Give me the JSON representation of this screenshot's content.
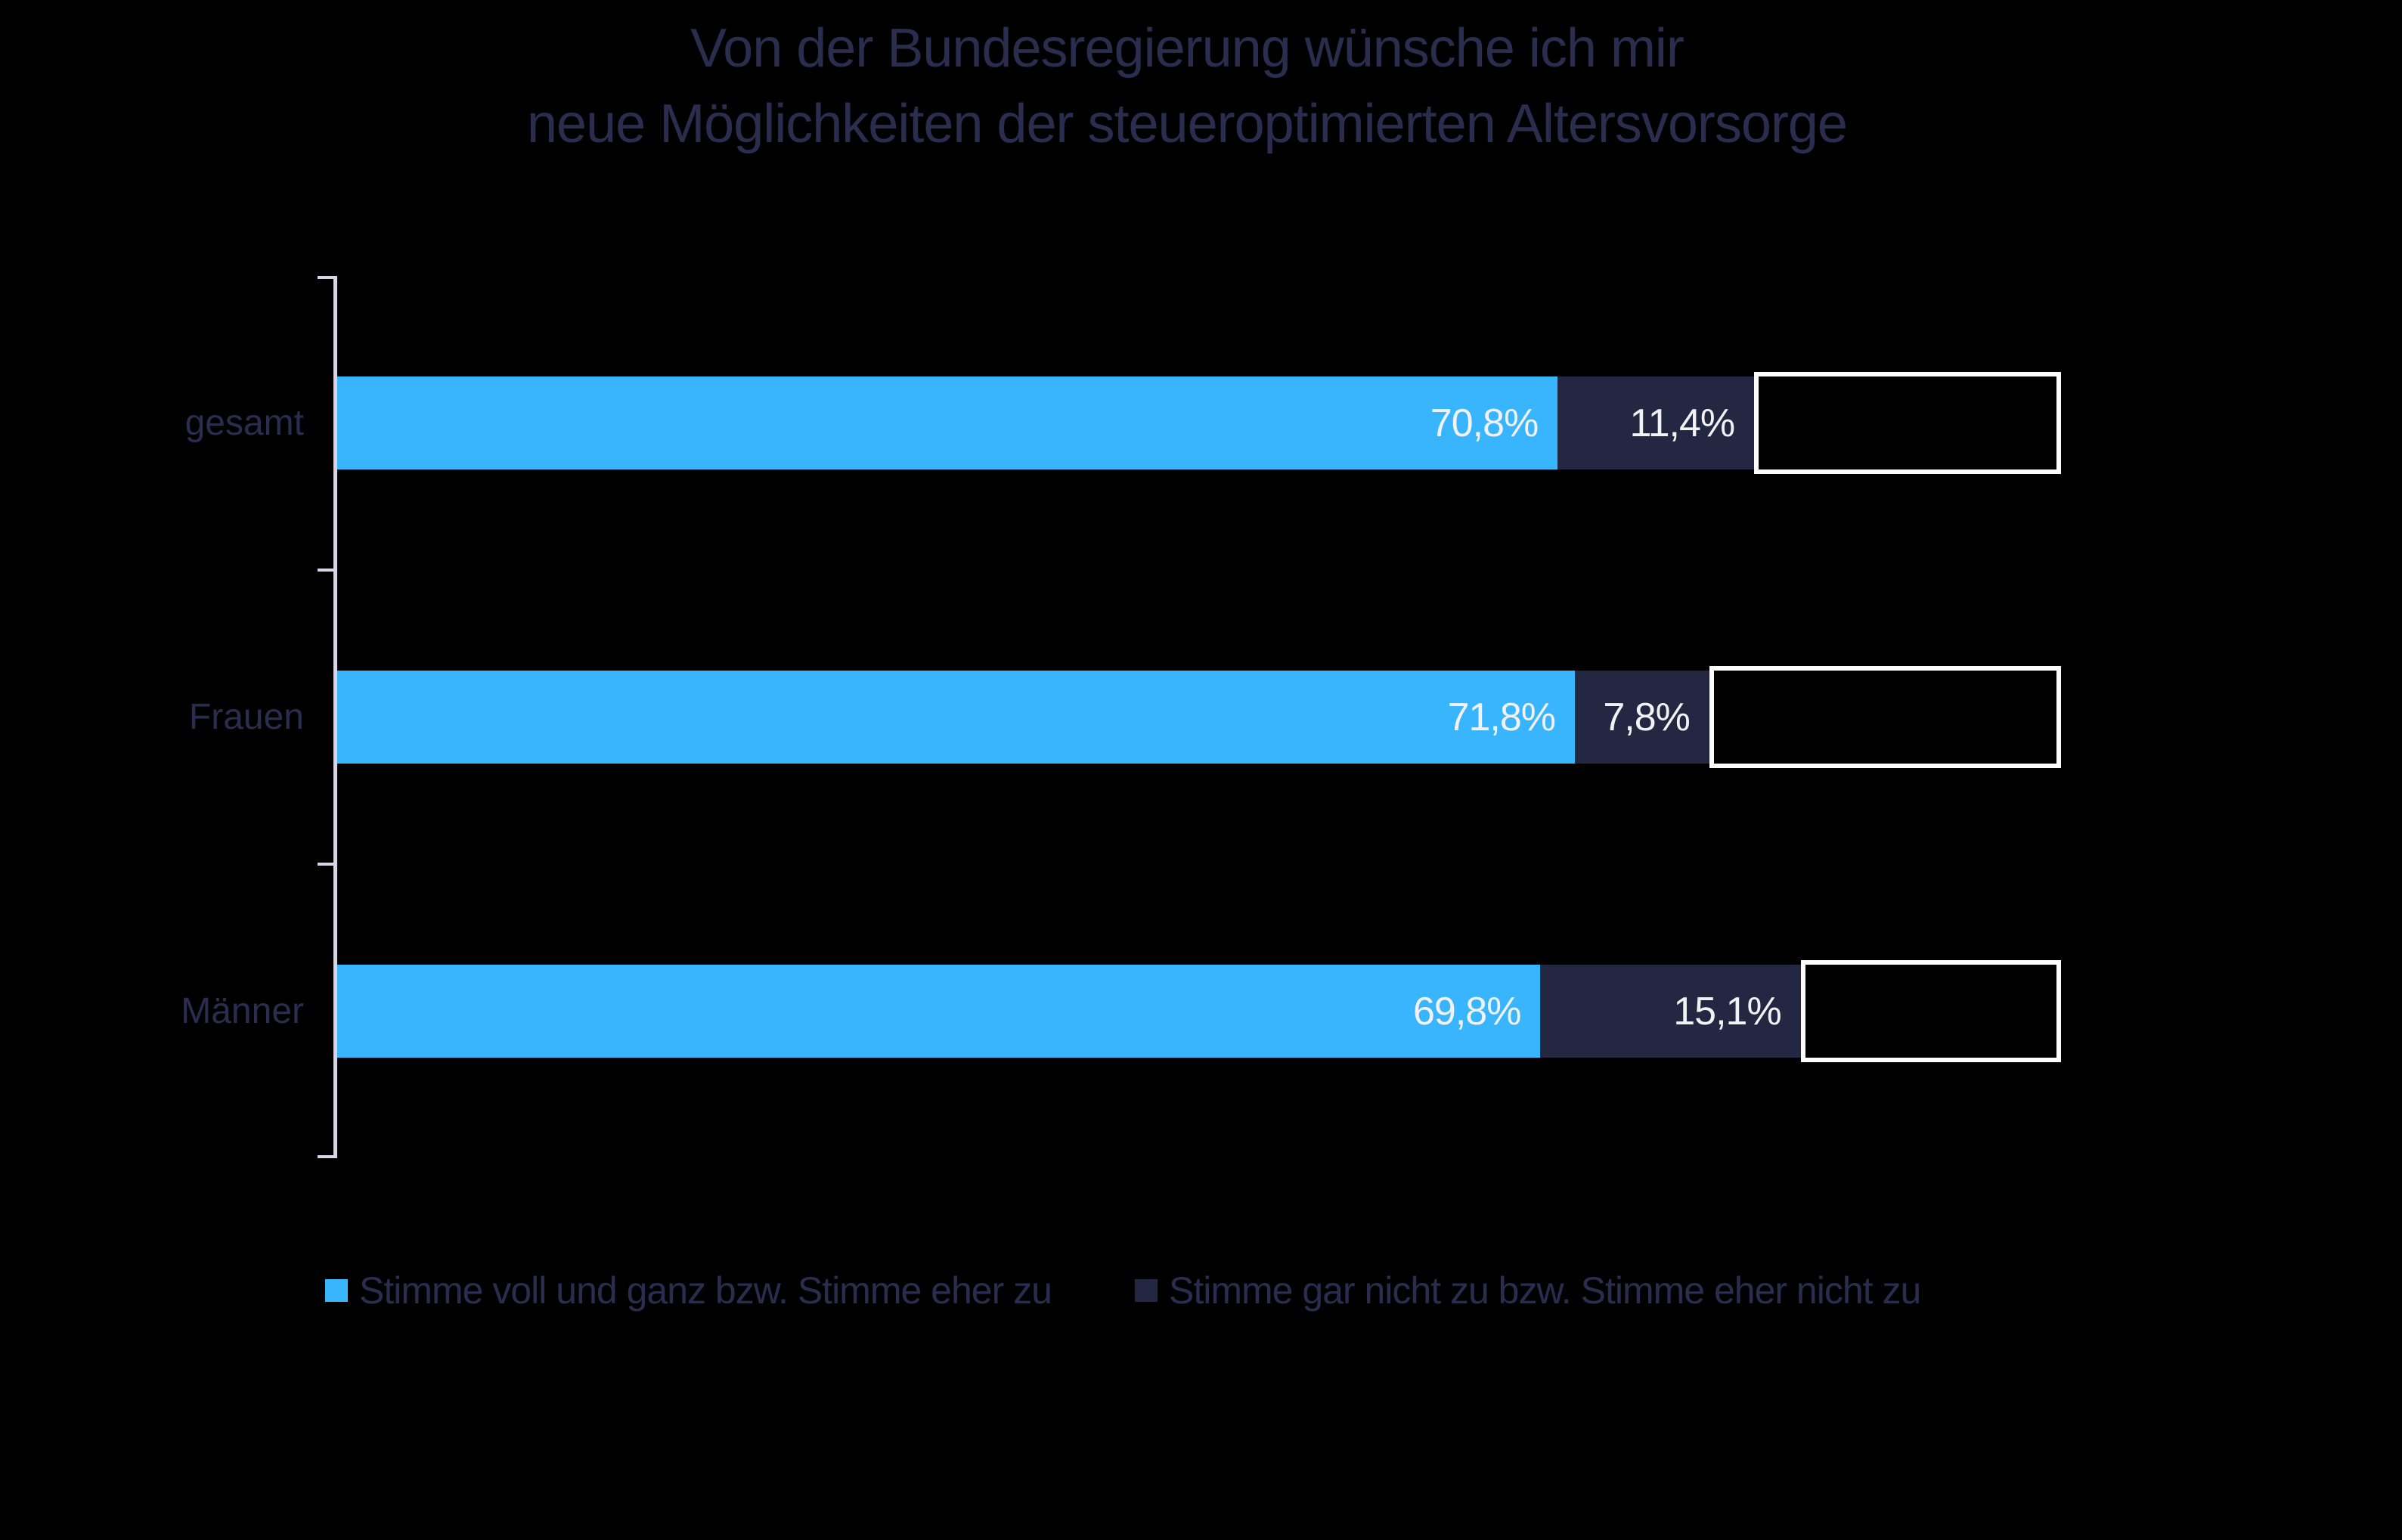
{
  "title": {
    "line1": "Von der Bundesregierung wünsche ich mir",
    "line2": "neue Möglichkeiten der steueroptimierten Altersvorsorge"
  },
  "legend": {
    "items": [
      {
        "label": "Stimme voll und ganz bzw. Stimme eher zu",
        "color_key": "agree"
      },
      {
        "label": "Stimme gar nicht zu bzw. Stimme eher nicht zu",
        "color_key": "disagree"
      }
    ]
  },
  "colors": {
    "background": "#000000",
    "agree": "#38b5fd",
    "disagree": "#232742",
    "text_dark": "#2a2d4d",
    "value_text": "#f2f2f4",
    "axis": "#d6d6e8",
    "box_border": "#fcfcfc"
  },
  "chart_data": {
    "type": "bar",
    "orientation": "horizontal",
    "stacked": true,
    "title": "Von der Bundesregierung wünsche ich mir neue Möglichkeiten der steueroptimierten Altersvorsorge",
    "categories": [
      "gesamt",
      "Frauen",
      "Männer"
    ],
    "series": [
      {
        "name": "Stimme voll und ganz bzw. Stimme eher zu",
        "values": [
          70.8,
          71.8,
          69.8
        ],
        "value_labels": [
          "70,8%",
          "71,8%",
          "69,8%"
        ]
      },
      {
        "name": "Stimme gar nicht zu bzw. Stimme eher nicht zu",
        "values": [
          11.4,
          7.8,
          15.1
        ],
        "value_labels": [
          "11,4%",
          "7,8%",
          "15,1%"
        ]
      }
    ],
    "remainder_outlined_box": {
      "values": [
        17.8,
        20.4,
        15.1
      ],
      "value_labels": [
        "",
        "",
        ""
      ]
    },
    "x_range_percent": [
      0,
      100
    ],
    "grid": false,
    "legend_position": "bottom"
  }
}
